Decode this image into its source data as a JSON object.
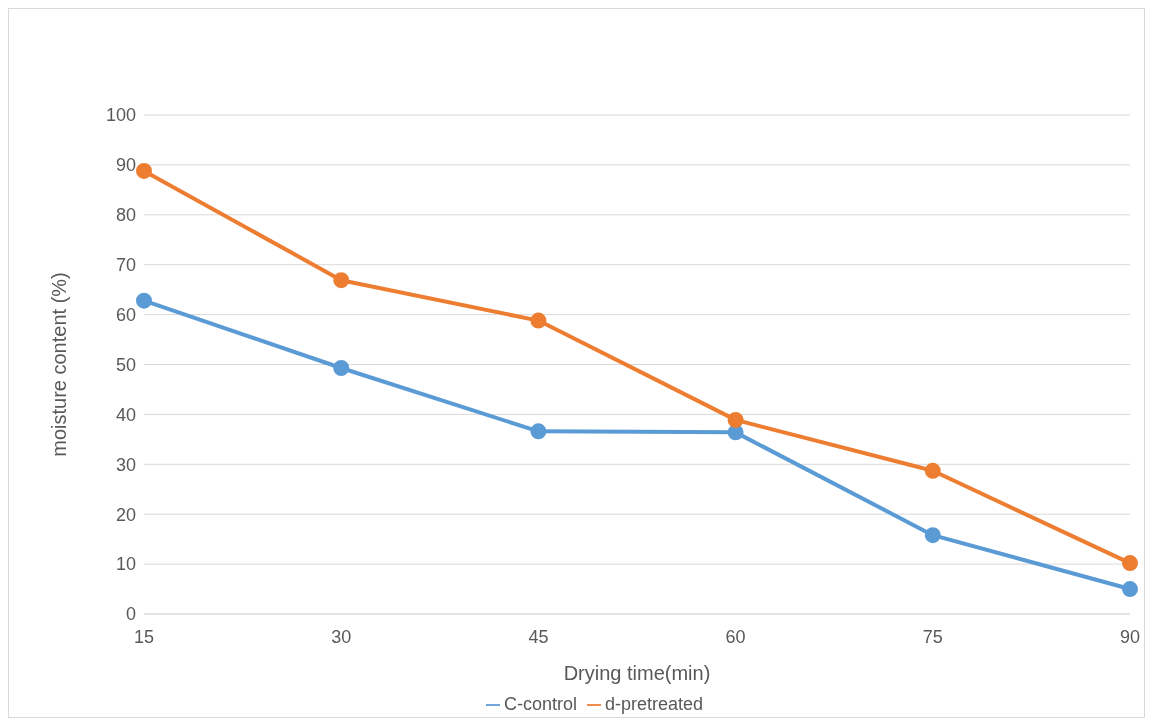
{
  "chart_data": {
    "type": "line",
    "xlabel": "Drying time(min)",
    "ylabel": "moisture content (%)",
    "categories": [
      "15",
      "30",
      "45",
      "60",
      "75",
      "90"
    ],
    "series": [
      {
        "name": "C-control",
        "color": "#5b9bd5",
        "values": [
          62.8,
          49.3,
          36.6,
          36.4,
          15.8,
          5.0
        ]
      },
      {
        "name": "d-pretreated",
        "color": "#ed7d31",
        "values": [
          88.8,
          66.9,
          58.8,
          38.9,
          28.7,
          10.2
        ]
      }
    ],
    "ylim": [
      0,
      100
    ],
    "yticks": [
      0,
      10,
      20,
      30,
      40,
      50,
      60,
      70,
      80,
      90,
      100
    ],
    "grid": "y",
    "legend": "bottom",
    "marker": "circle",
    "line_style": "solid"
  }
}
